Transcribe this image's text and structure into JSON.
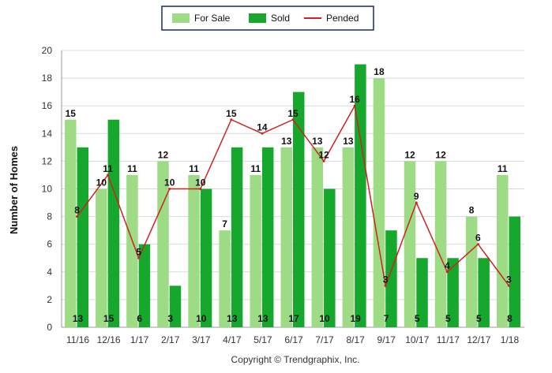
{
  "chart_data": {
    "type": "bar",
    "categories": [
      "11/16",
      "12/16",
      "1/17",
      "2/17",
      "3/17",
      "4/17",
      "5/17",
      "6/17",
      "7/17",
      "8/17",
      "9/17",
      "10/17",
      "11/17",
      "12/17",
      "1/18"
    ],
    "series": [
      {
        "name": "For Sale",
        "type": "bar",
        "color": "#9ddc84",
        "values": [
          15,
          10,
          11,
          12,
          11,
          7,
          11,
          13,
          13,
          13,
          18,
          12,
          12,
          8,
          11
        ]
      },
      {
        "name": "Sold",
        "type": "bar",
        "color": "#16a82d",
        "values": [
          13,
          15,
          6,
          3,
          10,
          13,
          13,
          17,
          10,
          19,
          7,
          5,
          5,
          5,
          8
        ]
      },
      {
        "name": "Pended",
        "type": "line",
        "color": "#cc2222",
        "values": [
          8,
          11,
          5,
          10,
          10,
          15,
          14,
          15,
          12,
          16,
          3,
          9,
          4,
          6,
          3
        ]
      }
    ],
    "ylabel": "Number of Homes",
    "ylim": [
      0,
      20
    ],
    "yticks": [
      0,
      2,
      4,
      6,
      8,
      10,
      12,
      14,
      16,
      18,
      20
    ],
    "grid": true,
    "legend_position": "top-center"
  },
  "copyright": "Copyright © Trendgraphix, Inc."
}
